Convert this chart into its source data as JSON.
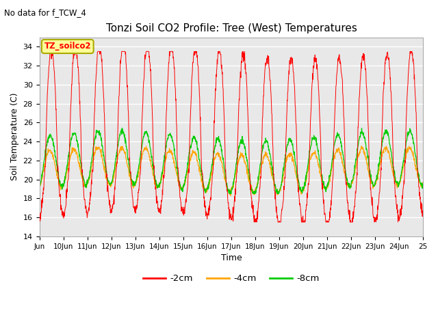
{
  "title": "Tonzi Soil CO2 Profile: Tree (West) Temperatures",
  "subtitle": "No data for f_TCW_4",
  "xlabel": "Time",
  "ylabel": "Soil Temperature (C)",
  "ylim": [
    14,
    35
  ],
  "yticks": [
    14,
    16,
    18,
    20,
    22,
    24,
    26,
    28,
    30,
    32,
    34
  ],
  "xlim_days": [
    9,
    25
  ],
  "xtick_labels": [
    "Jun",
    "10Jun",
    "11Jun",
    "12Jun",
    "13Jun",
    "14Jun",
    "15Jun",
    "16Jun",
    "17Jun",
    "18Jun",
    "19Jun",
    "20Jun",
    "21Jun",
    "22Jun",
    "23Jun",
    "24Jun",
    "25"
  ],
  "colors": {
    "neg2cm": "#FF0000",
    "neg4cm": "#FFA500",
    "neg8cm": "#00CC00"
  },
  "legend_labels": [
    "-2cm",
    "-4cm",
    "-8cm"
  ],
  "fig_bg_color": "#FFFFFF",
  "plot_bg_color": "#E8E8E8",
  "annotation_box": {
    "text": "TZ_soilco2",
    "facecolor": "#FFFF99",
    "edgecolor": "#AAAA00",
    "textcolor": "#FF0000"
  },
  "n_points_per_day": 96,
  "start_day": 9,
  "end_day": 25
}
